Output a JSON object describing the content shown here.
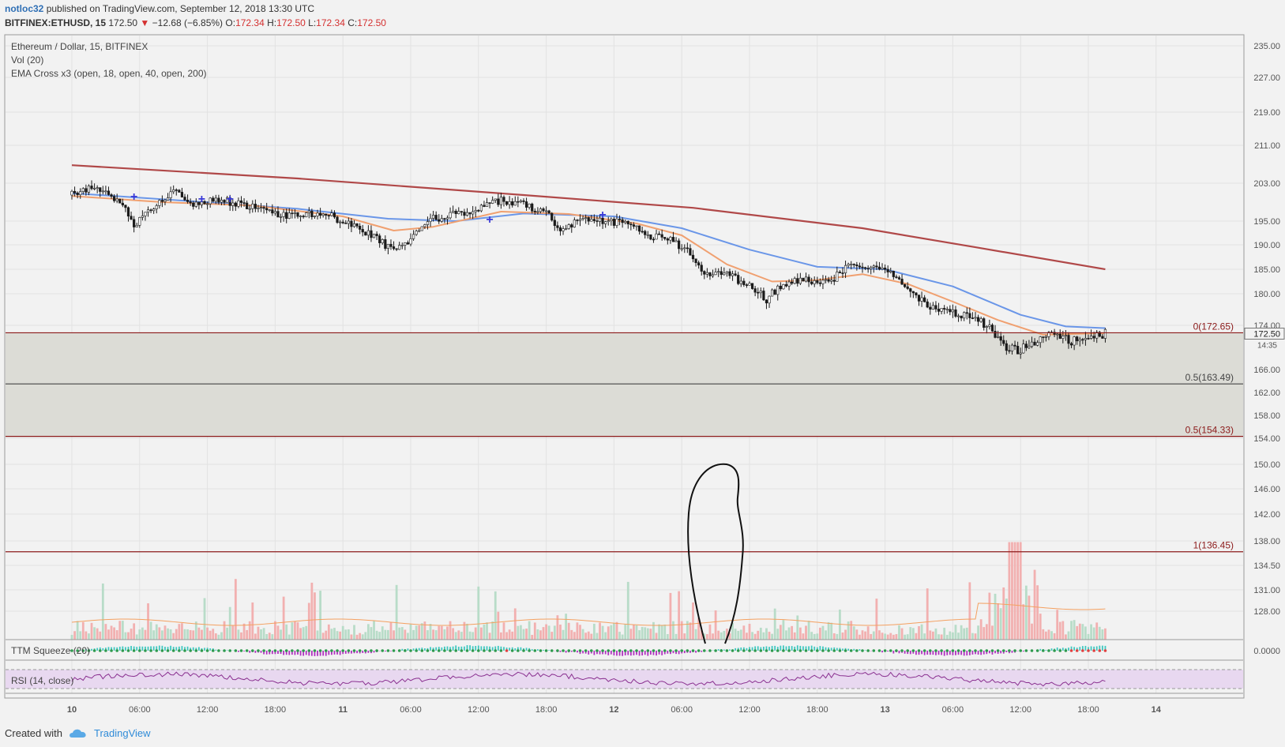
{
  "header": {
    "author": "notloc32",
    "published": "published on TradingView.com, September 12, 2018 13:30 UTC",
    "symbol": "BITFINEX:ETHUSD, 15",
    "last_price": "172.50",
    "change": "−12.68 (−6.85%)",
    "open_label": "O:",
    "open": "172.34",
    "high_label": "H:",
    "high": "172.50",
    "low_label": "L:",
    "low": "172.34",
    "close_label": "C:",
    "close": "172.50"
  },
  "legend": {
    "title": "Ethereum / Dollar, 15, BITFINEX",
    "volume": "Vol (20)",
    "ema": "EMA Cross x3 (open, 18, open, 40, open, 200)",
    "ttm": "TTM Squeeze (20)",
    "rsi": "RSI (14, close)"
  },
  "footer": {
    "created": "Created with",
    "brand": "TradingView"
  },
  "colors": {
    "background": "#f2f2f2",
    "candle": "#1a1a1a",
    "ema_fast": "#f0a070",
    "ema_mid": "#6a96e8",
    "ema_slow": "#b04848",
    "volume_up": "#b8dcc8",
    "volume_down": "#f2b0b0",
    "fib_line": "#8b1a1a",
    "fib_zone": "#dcdcd6",
    "rsi_band": "#e8d8f0",
    "rsi_line": "#8a3090",
    "ttm_green": "#2e9a4e",
    "ttm_red": "#e04040"
  },
  "chart_data": {
    "type": "line",
    "title": "Ethereum / Dollar, 15, BITFINEX",
    "price_axis": {
      "ticks": [
        "235.00",
        "227.00",
        "219.00",
        "211.00",
        "203.00",
        "195.00",
        "190.00",
        "185.00",
        "180.00",
        "174.00",
        "166.00",
        "162.00",
        "158.00",
        "154.00",
        "150.00",
        "146.00",
        "142.00",
        "138.00",
        "134.50",
        "131.00",
        "128.00"
      ],
      "current_price": "172.50",
      "countdown": "14:35",
      "ttm_tick": "0.0000"
    },
    "time_axis": {
      "ticks": [
        "10",
        "06:00",
        "12:00",
        "18:00",
        "11",
        "06:00",
        "12:00",
        "18:00",
        "12",
        "06:00",
        "12:00",
        "18:00",
        "13",
        "06:00",
        "12:00",
        "18:00",
        "14"
      ],
      "bold_ticks": [
        "10",
        "11",
        "12",
        "13",
        "14"
      ],
      "range_hours": [
        0,
        128
      ]
    },
    "fib_levels": [
      {
        "label": "0(172.65)",
        "value": 172.65
      },
      {
        "label": "0.5(163.49)",
        "value": 163.49
      },
      {
        "label": "0.5(154.33)",
        "value": 154.33
      },
      {
        "label": "1(136.45)",
        "value": 136.45
      }
    ],
    "price_series": [
      {
        "t": 0,
        "p": 200.5
      },
      {
        "t": 2,
        "p": 202.0
      },
      {
        "t": 4.5,
        "p": 199.0
      },
      {
        "t": 5.5,
        "p": 194.0
      },
      {
        "t": 7,
        "p": 197.5
      },
      {
        "t": 9,
        "p": 201.5
      },
      {
        "t": 11,
        "p": 198.5
      },
      {
        "t": 13,
        "p": 199.5
      },
      {
        "t": 15,
        "p": 198.5
      },
      {
        "t": 17,
        "p": 197.5
      },
      {
        "t": 19,
        "p": 196.0
      },
      {
        "t": 21,
        "p": 196.5
      },
      {
        "t": 23,
        "p": 196.0
      },
      {
        "t": 25,
        "p": 194.0
      },
      {
        "t": 27,
        "p": 191.5
      },
      {
        "t": 28.5,
        "p": 188.5
      },
      {
        "t": 30,
        "p": 191.0
      },
      {
        "t": 32,
        "p": 195.5
      },
      {
        "t": 34,
        "p": 196.5
      },
      {
        "t": 36,
        "p": 197.5
      },
      {
        "t": 38,
        "p": 199.5
      },
      {
        "t": 40,
        "p": 198.5
      },
      {
        "t": 42,
        "p": 196.5
      },
      {
        "t": 43.5,
        "p": 193.0
      },
      {
        "t": 45,
        "p": 196.0
      },
      {
        "t": 47,
        "p": 195.0
      },
      {
        "t": 49,
        "p": 194.5
      },
      {
        "t": 51,
        "p": 192.0
      },
      {
        "t": 53,
        "p": 191.0
      },
      {
        "t": 54.5,
        "p": 189.0
      },
      {
        "t": 56,
        "p": 184.5
      },
      {
        "t": 58,
        "p": 184.0
      },
      {
        "t": 60,
        "p": 181.5
      },
      {
        "t": 61.5,
        "p": 179.0
      },
      {
        "t": 63,
        "p": 182.0
      },
      {
        "t": 65,
        "p": 183.0
      },
      {
        "t": 67,
        "p": 182.0
      },
      {
        "t": 68.5,
        "p": 185.5
      },
      {
        "t": 70,
        "p": 185.0
      },
      {
        "t": 72,
        "p": 185.0
      },
      {
        "t": 74,
        "p": 181.0
      },
      {
        "t": 76,
        "p": 177.5
      },
      {
        "t": 77.5,
        "p": 176.5
      },
      {
        "t": 79,
        "p": 176.0
      },
      {
        "t": 81,
        "p": 174.0
      },
      {
        "t": 82.5,
        "p": 170.0
      },
      {
        "t": 84,
        "p": 169.5
      },
      {
        "t": 85.5,
        "p": 171.5
      },
      {
        "t": 87,
        "p": 173.0
      },
      {
        "t": 88.5,
        "p": 171.0
      },
      {
        "t": 90,
        "p": 172.0
      },
      {
        "t": 91.5,
        "p": 172.5
      }
    ],
    "ema_fast": [
      {
        "t": 0,
        "p": 200.3
      },
      {
        "t": 8,
        "p": 199.0
      },
      {
        "t": 16,
        "p": 198.3
      },
      {
        "t": 24,
        "p": 196.0
      },
      {
        "t": 28.5,
        "p": 193.0
      },
      {
        "t": 32,
        "p": 193.8
      },
      {
        "t": 38,
        "p": 197.0
      },
      {
        "t": 44,
        "p": 196.5
      },
      {
        "t": 50,
        "p": 194.5
      },
      {
        "t": 54,
        "p": 192.0
      },
      {
        "t": 58,
        "p": 186.0
      },
      {
        "t": 62,
        "p": 182.5
      },
      {
        "t": 66,
        "p": 182.8
      },
      {
        "t": 70,
        "p": 184.0
      },
      {
        "t": 74,
        "p": 182.0
      },
      {
        "t": 78,
        "p": 178.5
      },
      {
        "t": 82,
        "p": 175.0
      },
      {
        "t": 86,
        "p": 172.3
      },
      {
        "t": 91.5,
        "p": 172.6
      }
    ],
    "ema_mid": [
      {
        "t": 0,
        "p": 200.9
      },
      {
        "t": 10,
        "p": 199.3
      },
      {
        "t": 20,
        "p": 197.6
      },
      {
        "t": 28,
        "p": 195.5
      },
      {
        "t": 34,
        "p": 195.0
      },
      {
        "t": 40,
        "p": 196.6
      },
      {
        "t": 48,
        "p": 196.0
      },
      {
        "t": 54,
        "p": 193.5
      },
      {
        "t": 60,
        "p": 189.0
      },
      {
        "t": 66,
        "p": 185.5
      },
      {
        "t": 72,
        "p": 185.0
      },
      {
        "t": 78,
        "p": 181.5
      },
      {
        "t": 84,
        "p": 176.0
      },
      {
        "t": 88,
        "p": 173.8
      },
      {
        "t": 91.5,
        "p": 173.5
      }
    ],
    "ema_slow": [
      {
        "t": 0,
        "p": 206.8
      },
      {
        "t": 20,
        "p": 204.0
      },
      {
        "t": 40,
        "p": 200.5
      },
      {
        "t": 55,
        "p": 197.8
      },
      {
        "t": 70,
        "p": 193.5
      },
      {
        "t": 80,
        "p": 189.5
      },
      {
        "t": 91.5,
        "p": 185.0
      }
    ],
    "cross_markers": [
      {
        "t": 5.5,
        "p": 200.0
      },
      {
        "t": 11.5,
        "p": 199.5
      },
      {
        "t": 14,
        "p": 199.5
      },
      {
        "t": 37,
        "p": 195.2
      },
      {
        "t": 47,
        "p": 196.2
      }
    ],
    "volume_ylim": [
      0,
      100
    ],
    "rsi_ylim": [
      0,
      100
    ]
  }
}
